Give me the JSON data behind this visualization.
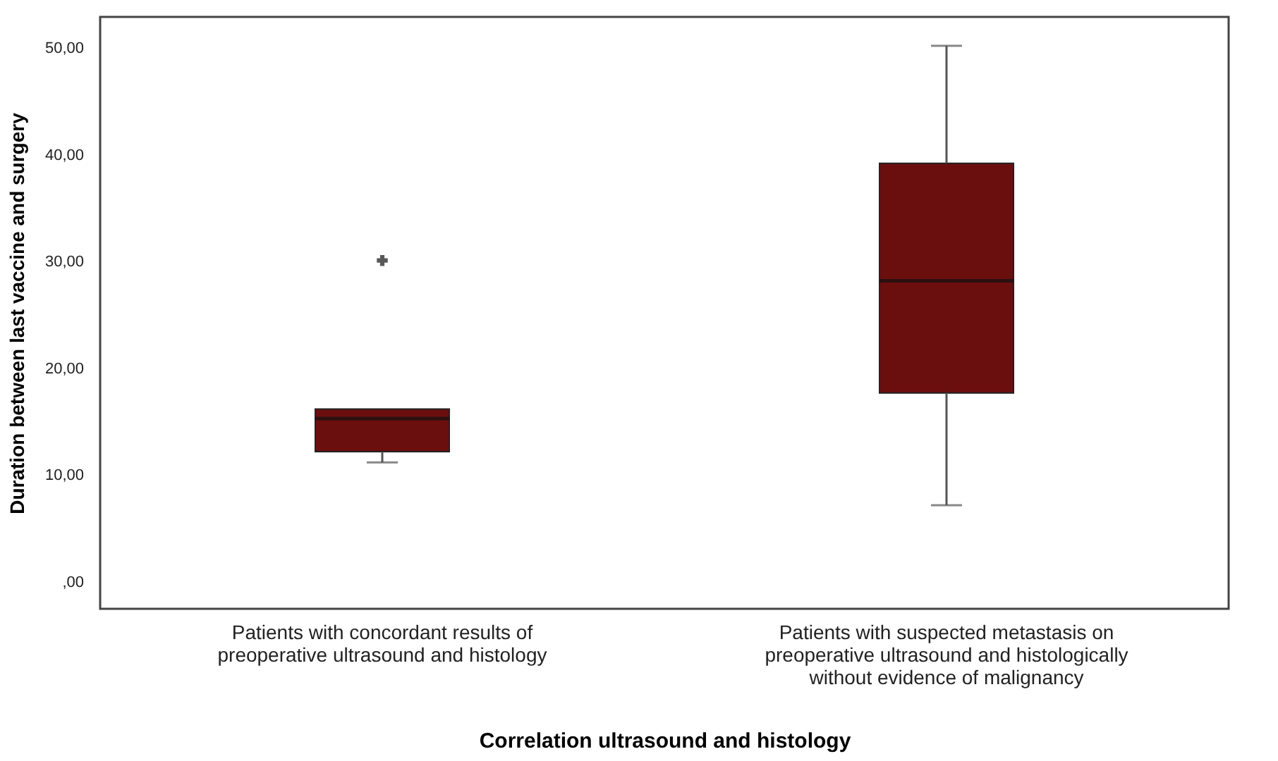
{
  "chart_data": {
    "type": "box",
    "xlabel": "Correlation ultrasound and histology",
    "ylabel": "Duration between last vaccine and surgery",
    "categories": [
      "Patients with concordant results of preoperative ultrasound and histology",
      "Patients with suspected metastasis on preoperative ultrasound and histologically without evidence of malignancy"
    ],
    "color": "#6b0e0e",
    "boxes": [
      {
        "low": 11.2,
        "q1": 12.2,
        "median": 15.3,
        "q3": 16.2,
        "high": 16.2,
        "outliers": [
          30.1
        ]
      },
      {
        "low": 7.2,
        "q1": 17.7,
        "median": 28.2,
        "q3": 39.2,
        "high": 50.2
      }
    ],
    "ylim": [
      -2.5,
      52.9
    ],
    "yticks": [
      {
        "value": 0,
        "label": ",00"
      },
      {
        "value": 10,
        "label": "10,00"
      },
      {
        "value": 20,
        "label": "20,00"
      },
      {
        "value": 30,
        "label": "30,00"
      },
      {
        "value": 40,
        "label": "40,00"
      },
      {
        "value": 50,
        "label": "50,00"
      }
    ],
    "grid": false
  }
}
